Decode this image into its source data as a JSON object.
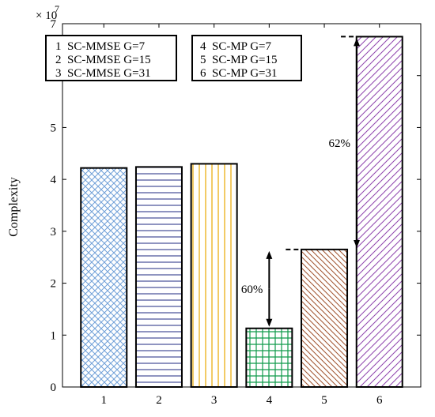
{
  "chart_data": {
    "type": "bar",
    "categories": [
      "1",
      "2",
      "3",
      "4",
      "5",
      "6"
    ],
    "values": [
      42200000,
      42400000,
      43000000,
      11300000,
      26500000,
      67500000
    ],
    "ylabel": "Complexity",
    "xlabel": "",
    "ylim": [
      0,
      70000000
    ],
    "y_ticks": [
      "0",
      "1",
      "2",
      "3",
      "4",
      "5",
      "6",
      "7"
    ],
    "y_exponent_base": "× 10",
    "y_exponent_power": "7",
    "grid": false,
    "legend_left": [
      {
        "index": "1",
        "name": "SC-MMSE G=7"
      },
      {
        "index": "2",
        "name": "SC-MMSE G=15"
      },
      {
        "index": "3",
        "name": "SC-MMSE G=31"
      }
    ],
    "legend_right": [
      {
        "index": "4",
        "name": "SC-MP G=7"
      },
      {
        "index": "5",
        "name": "SC-MP G=15"
      },
      {
        "index": "6",
        "name": "SC-MP G=31"
      }
    ],
    "bar_colors": [
      "#6f9fd8",
      "#1f2a80",
      "#e8a800",
      "#0f9a4a",
      "#a0522d",
      "#8e44ad"
    ],
    "bar_patterns": [
      "crosshatch",
      "horizontal",
      "vertical",
      "grid",
      "diag-down",
      "diag-up"
    ],
    "annotations": [
      {
        "text": "60%",
        "from_bar": 4,
        "to_bar": 5
      },
      {
        "text": "62%",
        "from_bar": 5,
        "to_bar": 6
      }
    ]
  }
}
